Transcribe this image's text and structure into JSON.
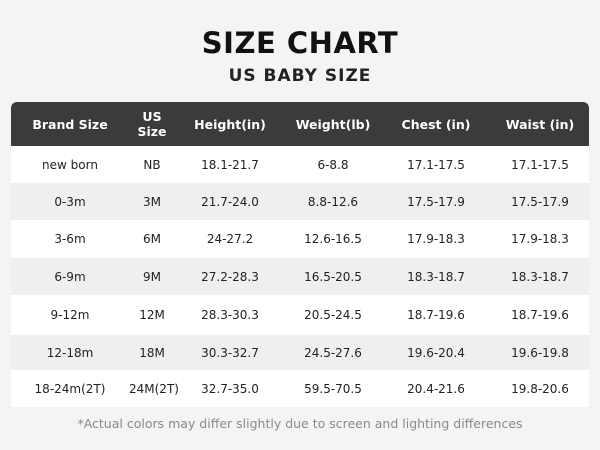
{
  "title": "SIZE CHART",
  "subtitle": "US BABY SIZE",
  "table": {
    "headers": [
      "Brand Size",
      "US Size",
      "Height(in)",
      "Weight(lb)",
      "Chest (in)",
      "Waist (in)"
    ],
    "rows": [
      [
        "new born",
        "NB",
        "18.1-21.7",
        "6-8.8",
        "17.1-17.5",
        "17.1-17.5"
      ],
      [
        "0-3m",
        "3M",
        "21.7-24.0",
        "8.8-12.6",
        "17.5-17.9",
        "17.5-17.9"
      ],
      [
        "3-6m",
        "6M",
        "24-27.2",
        "12.6-16.5",
        "17.9-18.3",
        "17.9-18.3"
      ],
      [
        "6-9m",
        "9M",
        "27.2-28.3",
        "16.5-20.5",
        "18.3-18.7",
        "18.3-18.7"
      ],
      [
        "9-12m",
        "12M",
        "28.3-30.3",
        "20.5-24.5",
        "18.7-19.6",
        "18.7-19.6"
      ],
      [
        "12-18m",
        "18M",
        "30.3-32.7",
        "24.5-27.6",
        "19.6-20.4",
        "19.6-19.8"
      ],
      [
        "18-24m(2T)",
        "24M(2T)",
        "32.7-35.0",
        "59.5-70.5",
        "20.4-21.6",
        "19.8-20.6"
      ]
    ]
  },
  "footnote": "*Actual colors may differ slightly due to screen and lighting differences",
  "colors": {
    "header_bg": "#3b3b3b",
    "row_alt": "#efefef",
    "background": "#f4f4f4"
  }
}
